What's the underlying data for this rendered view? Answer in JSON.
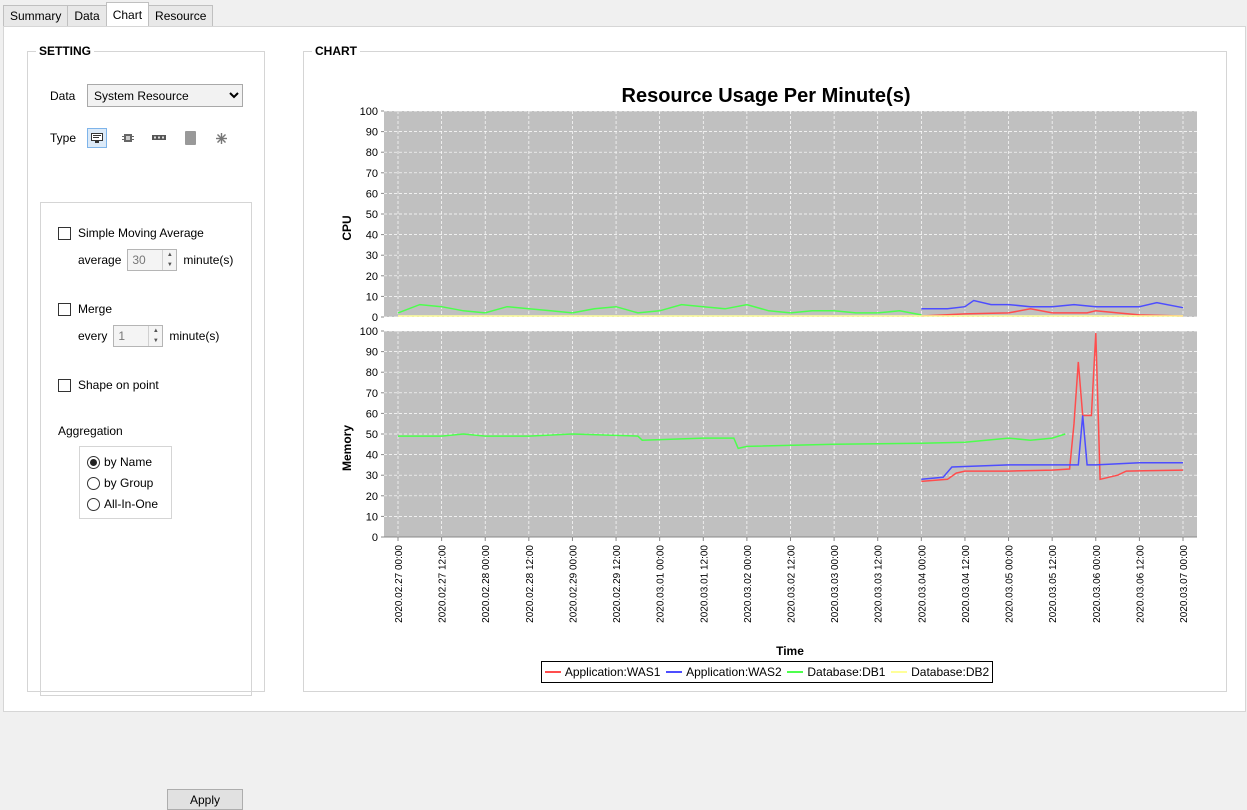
{
  "tabs": [
    {
      "label": "Summary"
    },
    {
      "label": "Data"
    },
    {
      "label": "Chart"
    },
    {
      "label": "Resource"
    }
  ],
  "setting": {
    "title": "SETTING",
    "data_label": "Data",
    "data_value": "System Resource",
    "type_label": "Type",
    "type_icons": [
      "monitor-icon",
      "cpu-chip-icon",
      "memory-icon",
      "disk-icon",
      "network-icon"
    ],
    "sma": {
      "label": "Simple Moving Average",
      "checked": false,
      "average_label": "average",
      "average_value": "30",
      "unit": "minute(s)"
    },
    "merge": {
      "label": "Merge",
      "checked": false,
      "every_label": "every",
      "every_value": "1",
      "unit": "minute(s)"
    },
    "shape": {
      "label": "Shape on point",
      "checked": false
    },
    "aggregation": {
      "label": "Aggregation",
      "options": [
        {
          "label": "by Name",
          "selected": true
        },
        {
          "label": "by Group",
          "selected": false
        },
        {
          "label": "All-In-One",
          "selected": false
        }
      ]
    },
    "apply_label": "Apply"
  },
  "chart": {
    "section_title": "CHART"
  },
  "chart_data": {
    "type": "line",
    "title": "Resource Usage Per Minute(s)",
    "xlabel": "Time",
    "x_ticks": [
      "2020.02.27 00:00",
      "2020.02.27 12:00",
      "2020.02.28 00:00",
      "2020.02.28 12:00",
      "2020.02.29 00:00",
      "2020.02.29 12:00",
      "2020.03.01 00:00",
      "2020.03.01 12:00",
      "2020.03.02 00:00",
      "2020.03.02 12:00",
      "2020.03.03 00:00",
      "2020.03.03 12:00",
      "2020.03.04 00:00",
      "2020.03.04 12:00",
      "2020.03.05 00:00",
      "2020.03.05 12:00",
      "2020.03.06 00:00",
      "2020.03.06 12:00",
      "2020.03.07 00:00"
    ],
    "x_unit_hours": 12,
    "legend": "bottom-center",
    "grid": true,
    "colors": {
      "WAS1": "#ff4d4d",
      "WAS2": "#4d4dff",
      "DB1": "#4dff4d",
      "DB2": "#ffff99",
      "plot_bg": "#c0c0c0"
    },
    "panels": [
      {
        "ylabel": "CPU",
        "ylim": [
          0,
          100
        ],
        "yticks": [
          0,
          10,
          20,
          30,
          40,
          50,
          60,
          70,
          80,
          90,
          100
        ],
        "series": [
          {
            "name": "Application:WAS1",
            "key": "WAS1",
            "points": [
              [
                12,
                0.5
              ],
              [
                13,
                1.5
              ],
              [
                14,
                2
              ],
              [
                14.5,
                4
              ],
              [
                15,
                2
              ],
              [
                15.8,
                2
              ],
              [
                16,
                3
              ],
              [
                16.5,
                2
              ],
              [
                17,
                1
              ],
              [
                18,
                0.5
              ]
            ]
          },
          {
            "name": "Application:WAS2",
            "key": "WAS2",
            "points": [
              [
                12,
                4
              ],
              [
                12.6,
                4
              ],
              [
                13,
                5
              ],
              [
                13.2,
                8
              ],
              [
                13.6,
                6
              ],
              [
                14,
                6
              ],
              [
                14.5,
                5
              ],
              [
                15,
                5
              ],
              [
                15.5,
                6
              ],
              [
                16,
                5
              ],
              [
                17,
                5
              ],
              [
                17.4,
                7
              ],
              [
                18,
                4.5
              ]
            ]
          },
          {
            "name": "Database:DB1",
            "key": "DB1",
            "points": [
              [
                0,
                2
              ],
              [
                0.5,
                6
              ],
              [
                1,
                5
              ],
              [
                1.5,
                3
              ],
              [
                2,
                2
              ],
              [
                2.5,
                5
              ],
              [
                3,
                4
              ],
              [
                3.5,
                3
              ],
              [
                4,
                2
              ],
              [
                4.5,
                4
              ],
              [
                5,
                5
              ],
              [
                5.5,
                2
              ],
              [
                6,
                3
              ],
              [
                6.5,
                6
              ],
              [
                7,
                5
              ],
              [
                7.5,
                4
              ],
              [
                8,
                6
              ],
              [
                8.5,
                3
              ],
              [
                9,
                2
              ],
              [
                9.5,
                3
              ],
              [
                10,
                3
              ],
              [
                10.5,
                2
              ],
              [
                11,
                2
              ],
              [
                11.5,
                3
              ],
              [
                12,
                1
              ]
            ]
          },
          {
            "name": "Database:DB2",
            "key": "DB2",
            "points": [
              [
                0,
                0.5
              ],
              [
                6,
                0.5
              ],
              [
                12,
                0.5
              ],
              [
                18,
                0.5
              ]
            ]
          }
        ]
      },
      {
        "ylabel": "Memory",
        "ylim": [
          0,
          100
        ],
        "yticks": [
          0,
          10,
          20,
          30,
          40,
          50,
          60,
          70,
          80,
          90,
          100
        ],
        "series": [
          {
            "name": "Application:WAS1",
            "key": "WAS1",
            "points": [
              [
                12,
                27
              ],
              [
                12.6,
                28
              ],
              [
                12.8,
                31
              ],
              [
                13,
                32
              ],
              [
                14,
                32
              ],
              [
                15,
                32.5
              ],
              [
                15.4,
                33
              ],
              [
                15.5,
                55
              ],
              [
                15.6,
                85
              ],
              [
                15.7,
                59
              ],
              [
                15.9,
                59
              ],
              [
                16,
                99
              ],
              [
                16.1,
                28
              ],
              [
                16.5,
                30
              ],
              [
                16.7,
                32
              ],
              [
                18,
                32.5
              ]
            ]
          },
          {
            "name": "Application:WAS2",
            "key": "WAS2",
            "points": [
              [
                12,
                28
              ],
              [
                12.5,
                29
              ],
              [
                12.7,
                34
              ],
              [
                14,
                35
              ],
              [
                15,
                35
              ],
              [
                15.6,
                35
              ],
              [
                15.7,
                59
              ],
              [
                15.8,
                35
              ],
              [
                16,
                35
              ],
              [
                17,
                36
              ],
              [
                18,
                36
              ]
            ]
          },
          {
            "name": "Database:DB1",
            "key": "DB1",
            "points": [
              [
                0,
                49
              ],
              [
                1,
                49
              ],
              [
                1.5,
                50
              ],
              [
                2,
                49
              ],
              [
                3,
                49
              ],
              [
                4,
                50
              ],
              [
                5.5,
                49
              ],
              [
                5.6,
                47
              ],
              [
                7,
                48
              ],
              [
                7.7,
                48
              ],
              [
                7.8,
                43
              ],
              [
                8,
                44
              ],
              [
                10,
                45
              ],
              [
                12,
                45.5
              ],
              [
                13,
                46
              ],
              [
                14,
                48
              ],
              [
                14.5,
                47
              ],
              [
                15,
                48
              ],
              [
                15.3,
                50
              ]
            ]
          },
          {
            "name": "Database:DB2",
            "key": "DB2",
            "points": []
          }
        ]
      }
    ]
  }
}
